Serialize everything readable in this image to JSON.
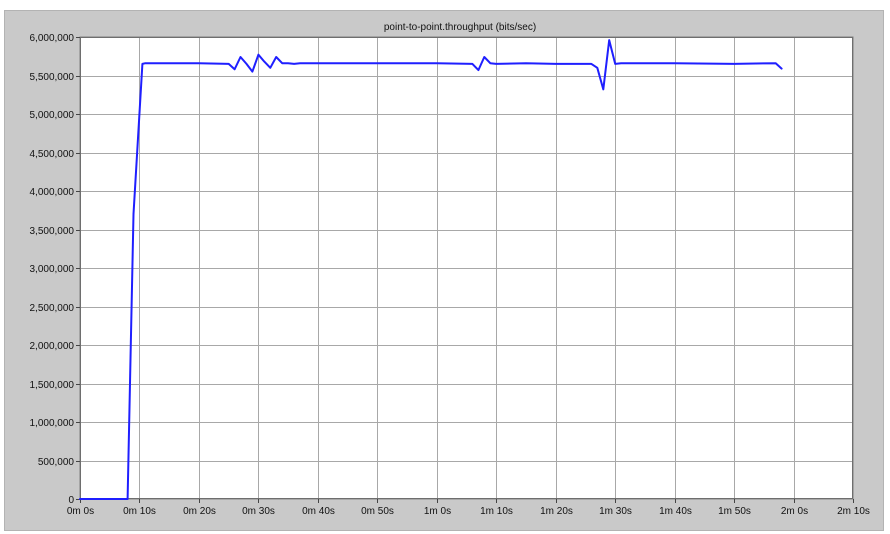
{
  "chart_data": {
    "type": "line",
    "title": "point-to-point.throughput (bits/sec)",
    "xlabel": "",
    "ylabel": "",
    "xlim": [
      0,
      130
    ],
    "ylim": [
      0,
      6000000
    ],
    "grid": true,
    "x_tick_labels": [
      "0m 0s",
      "0m 10s",
      "0m 20s",
      "0m 30s",
      "0m 40s",
      "0m 50s",
      "1m 0s",
      "1m 10s",
      "1m 20s",
      "1m 30s",
      "1m 40s",
      "1m 50s",
      "2m 0s",
      "2m 10s"
    ],
    "y_tick_labels": [
      "0",
      "500,000",
      "1,000,000",
      "1,500,000",
      "2,000,000",
      "2,500,000",
      "3,000,000",
      "3,500,000",
      "4,000,000",
      "4,500,000",
      "5,000,000",
      "5,500,000",
      "6,000,000"
    ],
    "line_color": "#1f1fff",
    "series": [
      {
        "x": [
          0,
          8,
          9,
          10.5,
          11,
          15,
          20,
          25,
          26,
          27,
          28,
          29,
          30,
          31,
          32,
          33,
          34,
          35,
          36,
          37,
          40,
          50,
          60,
          66,
          67,
          68,
          69,
          70,
          75,
          80,
          86,
          87,
          88,
          89,
          90,
          91,
          95,
          100,
          110,
          117,
          118
        ],
        "y": [
          0,
          0,
          3700000,
          5650000,
          5660000,
          5660000,
          5660000,
          5650000,
          5580000,
          5740000,
          5650000,
          5550000,
          5770000,
          5680000,
          5600000,
          5740000,
          5660000,
          5660000,
          5650000,
          5660000,
          5660000,
          5660000,
          5660000,
          5650000,
          5570000,
          5740000,
          5660000,
          5650000,
          5660000,
          5650000,
          5650000,
          5600000,
          5320000,
          5960000,
          5650000,
          5660000,
          5660000,
          5660000,
          5650000,
          5660000,
          5590000
        ]
      }
    ]
  }
}
